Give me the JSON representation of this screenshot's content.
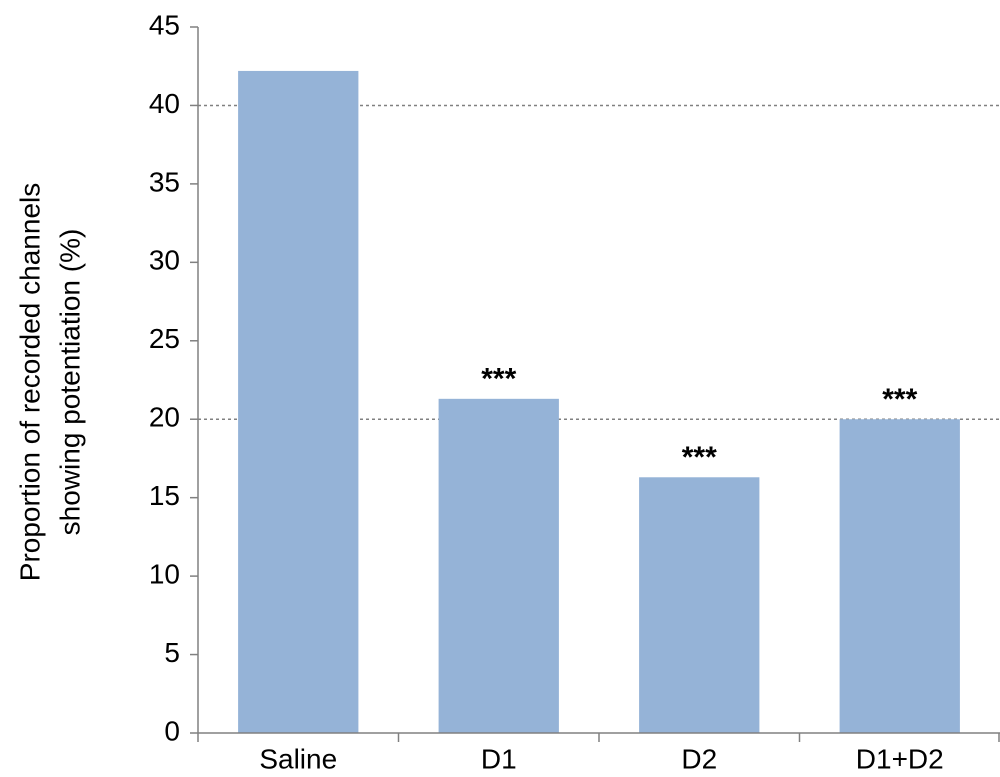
{
  "chart_data": {
    "type": "bar",
    "y_label_lines": [
      "Proportion of recorded channels",
      "showing potentiation  (%)"
    ],
    "categories": [
      "Saline",
      "D1",
      "D2",
      "D1+D2"
    ],
    "values": [
      42.2,
      21.3,
      16.3,
      20.0
    ],
    "annotations": [
      null,
      "***",
      "***",
      "***"
    ],
    "color": "#95b3d7",
    "ylim": [
      0,
      45
    ],
    "yticks": [
      0,
      5,
      10,
      15,
      20,
      25,
      30,
      35,
      40,
      45
    ],
    "grid_lines": [
      20,
      40
    ],
    "grid_style": "dotted"
  }
}
